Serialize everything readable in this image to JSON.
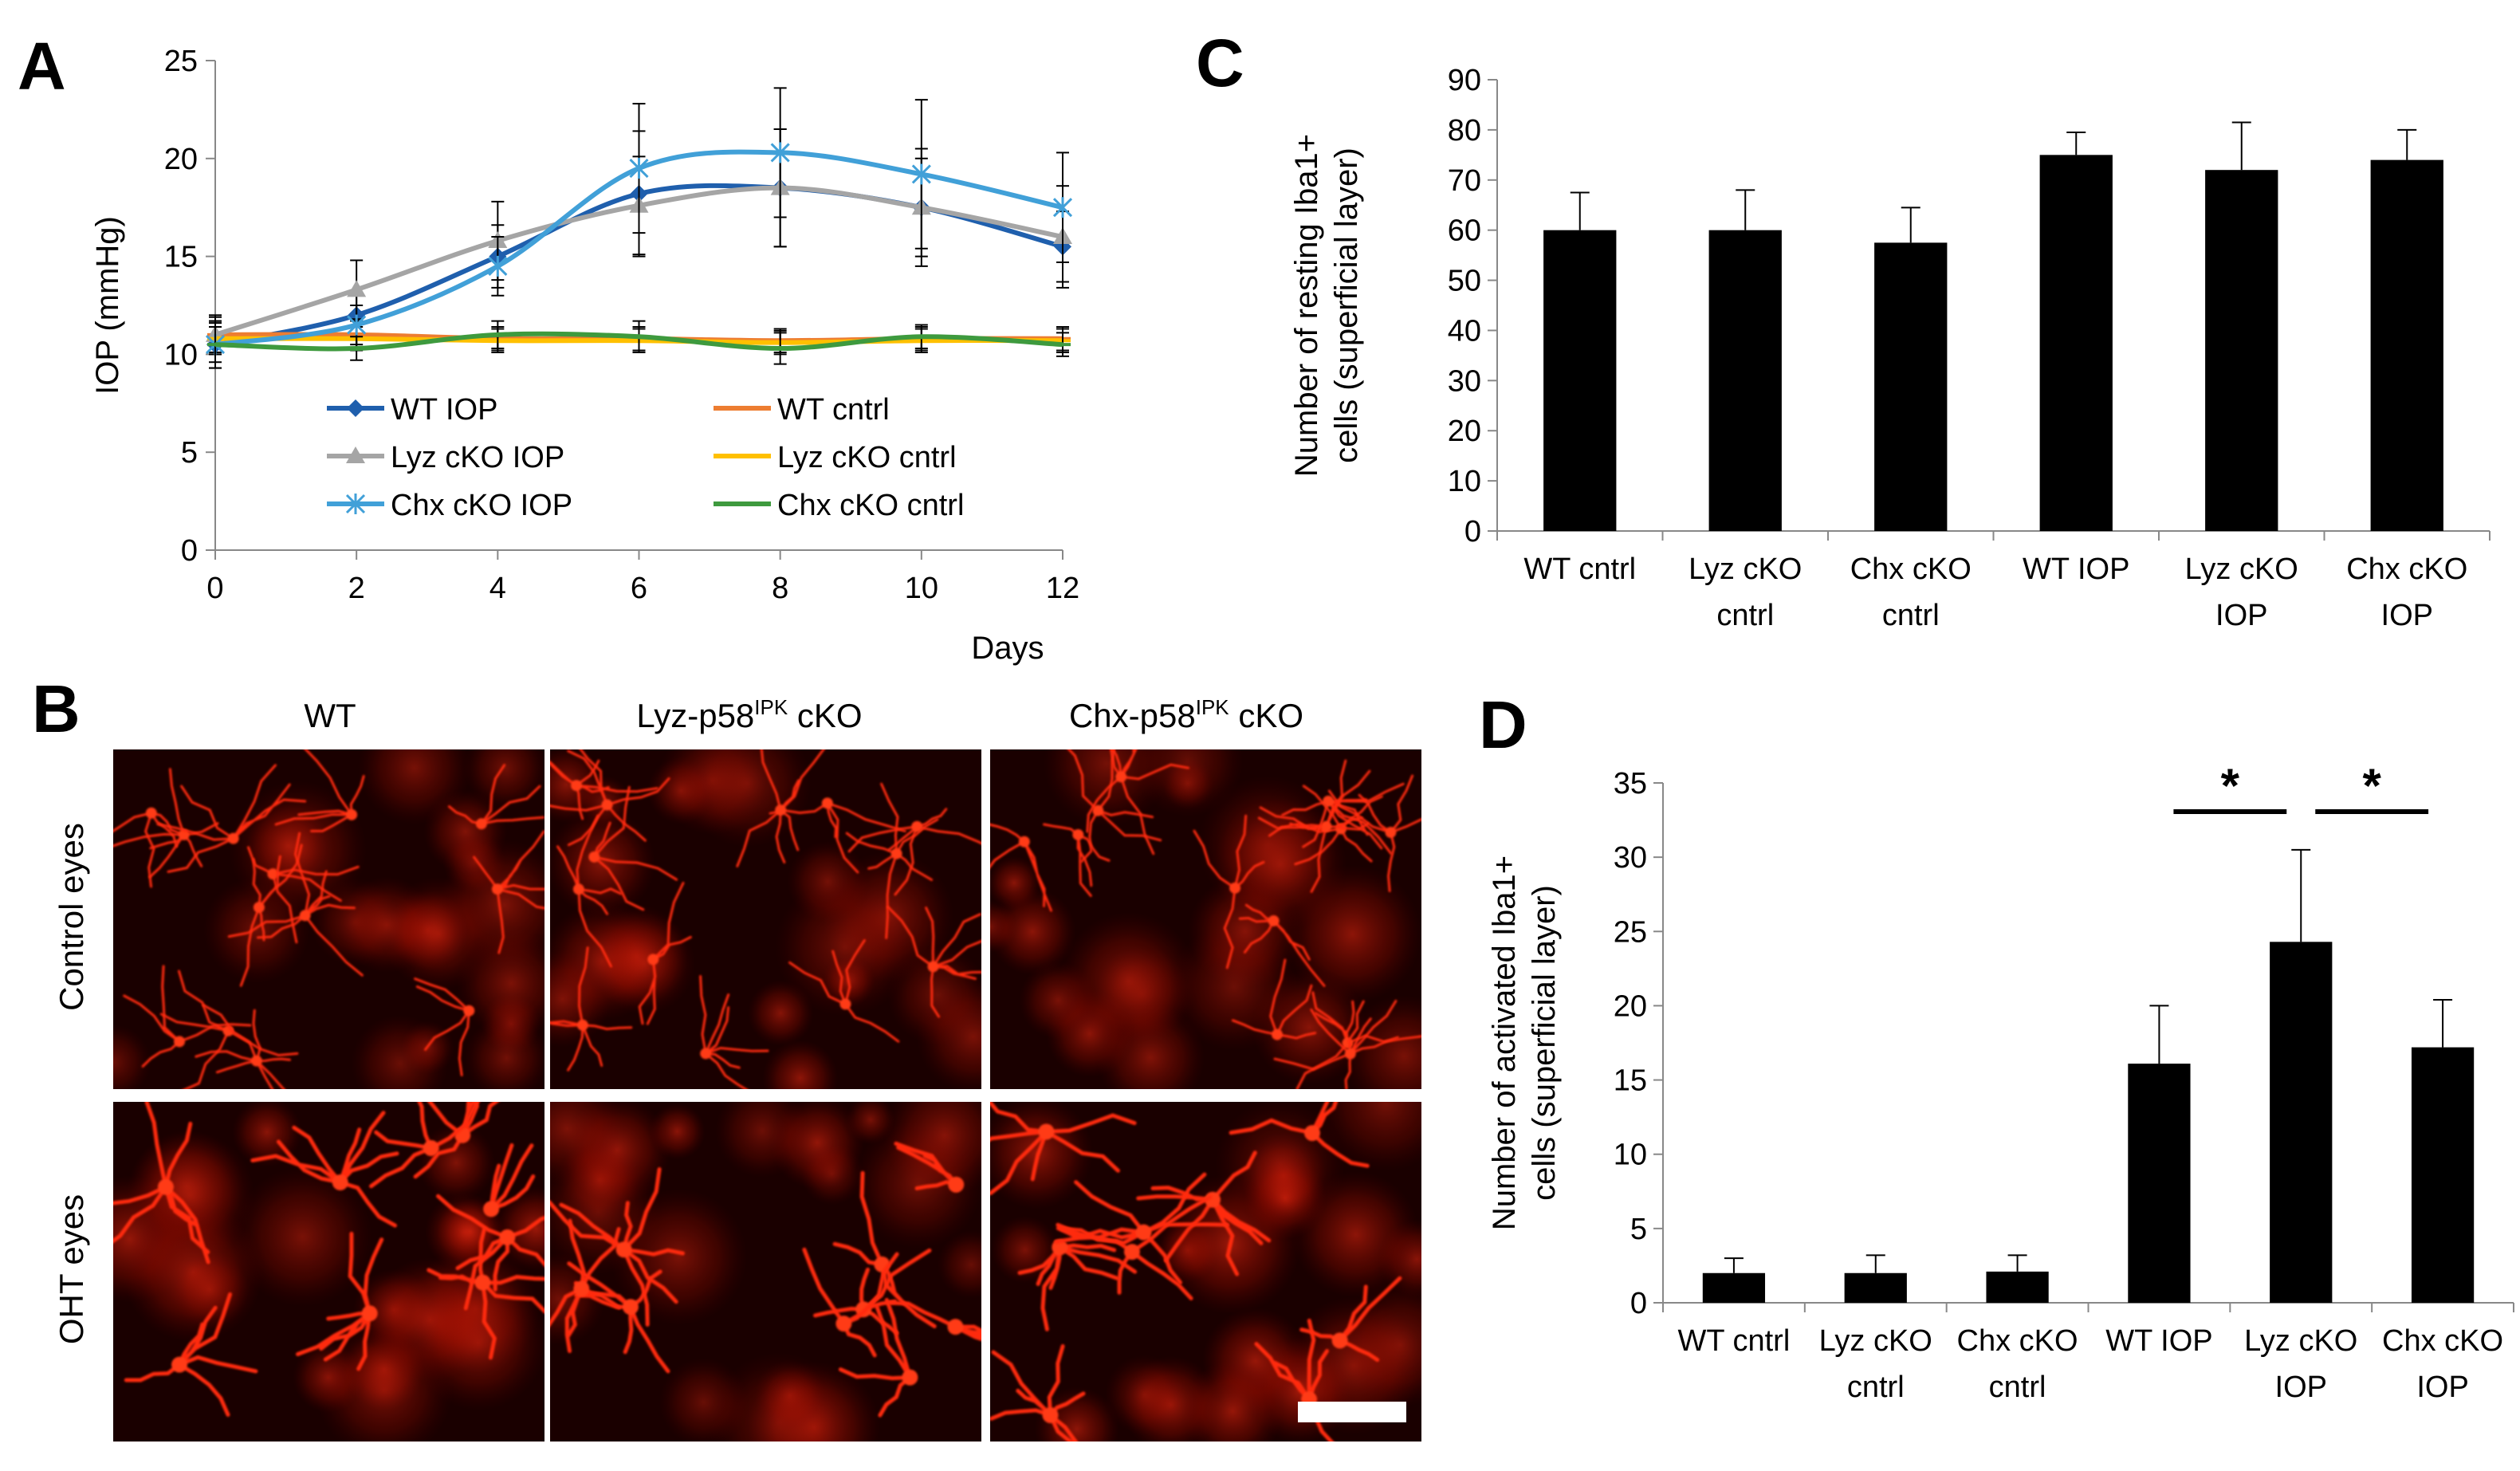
{
  "panels": {
    "A": {
      "letter": "A"
    },
    "B": {
      "letter": "B",
      "columns": [
        {
          "main": "WT",
          "sup": "",
          "tail": ""
        },
        {
          "main": "Lyz-p58",
          "sup": "IPK",
          "tail": " cKO"
        },
        {
          "main": "Chx-p58",
          "sup": "IPK",
          "tail": " cKO"
        }
      ],
      "rows": [
        "Control eyes",
        "OHT eyes"
      ]
    },
    "C": {
      "letter": "C"
    },
    "D": {
      "letter": "D"
    }
  },
  "chart_data": [
    {
      "id": "A",
      "type": "line",
      "xlabel": "Days",
      "ylabel": "IOP (mmHg)",
      "xlim": [
        0,
        12
      ],
      "ylim": [
        0,
        25
      ],
      "xticks": [
        0,
        2,
        4,
        6,
        8,
        10,
        12
      ],
      "yticks": [
        0,
        5,
        10,
        15,
        20,
        25
      ],
      "x": [
        0,
        2,
        4,
        6,
        8,
        10,
        12
      ],
      "series": [
        {
          "name": "WT IOP",
          "color": "#1f5fad",
          "marker": "diamond",
          "values": [
            10.5,
            12.0,
            15.0,
            18.2,
            18.5,
            17.5,
            15.5
          ],
          "errors": [
            1.2,
            1.0,
            1.6,
            3.2,
            3.0,
            2.5,
            1.8
          ]
        },
        {
          "name": "WT cntrl",
          "color": "#ed7d31",
          "marker": "dash",
          "values": [
            11.0,
            11.0,
            10.8,
            10.8,
            10.7,
            10.8,
            10.8
          ],
          "errors": [
            0.9,
            0.7,
            0.6,
            0.6,
            0.6,
            0.6,
            0.6
          ]
        },
        {
          "name": "Lyz cKO IOP",
          "color": "#a5a5a5",
          "marker": "triangle",
          "values": [
            11.0,
            13.3,
            15.8,
            17.6,
            18.5,
            17.5,
            16.0
          ],
          "errors": [
            1.0,
            1.5,
            2.0,
            2.5,
            3.0,
            3.0,
            2.6
          ]
        },
        {
          "name": "Lyz cKO cntrl",
          "color": "#ffc000",
          "marker": "dash",
          "values": [
            10.8,
            10.8,
            10.7,
            10.7,
            10.6,
            10.7,
            10.7
          ],
          "errors": [
            0.8,
            0.6,
            0.6,
            0.6,
            0.6,
            0.6,
            0.6
          ]
        },
        {
          "name": "Chx cKO IOP",
          "color": "#41a0d8",
          "marker": "star",
          "values": [
            10.5,
            11.5,
            14.5,
            19.5,
            20.3,
            19.2,
            17.5
          ],
          "errors": [
            1.2,
            1.0,
            1.5,
            3.3,
            3.3,
            3.8,
            2.8
          ]
        },
        {
          "name": "Chx cKO cntrl",
          "color": "#3e9a3e",
          "marker": "dash",
          "values": [
            10.5,
            10.3,
            11.0,
            10.9,
            10.3,
            10.9,
            10.5
          ],
          "errors": [
            0.9,
            0.6,
            0.7,
            0.8,
            0.8,
            0.6,
            0.6
          ]
        }
      ]
    },
    {
      "id": "C",
      "type": "bar",
      "ylabel_lines": [
        "Number of resting Iba1+",
        "cells (superficial layer)"
      ],
      "ylim": [
        0,
        90
      ],
      "yticks": [
        0,
        10,
        20,
        30,
        40,
        50,
        60,
        70,
        80,
        90
      ],
      "categories": [
        [
          "WT cntrl"
        ],
        [
          "Lyz cKO",
          "cntrl"
        ],
        [
          "Chx cKO",
          "cntrl"
        ],
        [
          "WT IOP"
        ],
        [
          "Lyz cKO",
          "IOP"
        ],
        [
          "Chx cKO",
          "IOP"
        ]
      ],
      "values": [
        60,
        60,
        57.5,
        75,
        72,
        74
      ],
      "errors": [
        7.5,
        8,
        7,
        4.5,
        9.5,
        6
      ],
      "color": "#000000"
    },
    {
      "id": "D",
      "type": "bar",
      "ylabel_lines": [
        "Number of activated Iba1+",
        "cells (superficial layer)"
      ],
      "ylim": [
        0,
        35
      ],
      "yticks": [
        0,
        5,
        10,
        15,
        20,
        25,
        30,
        35
      ],
      "categories": [
        [
          "WT cntrl"
        ],
        [
          "Lyz cKO",
          "cntrl"
        ],
        [
          "Chx cKO",
          "cntrl"
        ],
        [
          "WT IOP"
        ],
        [
          "Lyz cKO",
          "IOP"
        ],
        [
          "Chx cKO",
          "IOP"
        ]
      ],
      "values": [
        2,
        2,
        2.1,
        16.1,
        24.3,
        17.2
      ],
      "errors": [
        1.0,
        1.2,
        1.1,
        3.9,
        6.2,
        3.2
      ],
      "color": "#000000",
      "significance": [
        {
          "from": 3,
          "to": 4,
          "label": "*"
        },
        {
          "from": 4,
          "to": 5,
          "label": "*"
        }
      ]
    }
  ]
}
